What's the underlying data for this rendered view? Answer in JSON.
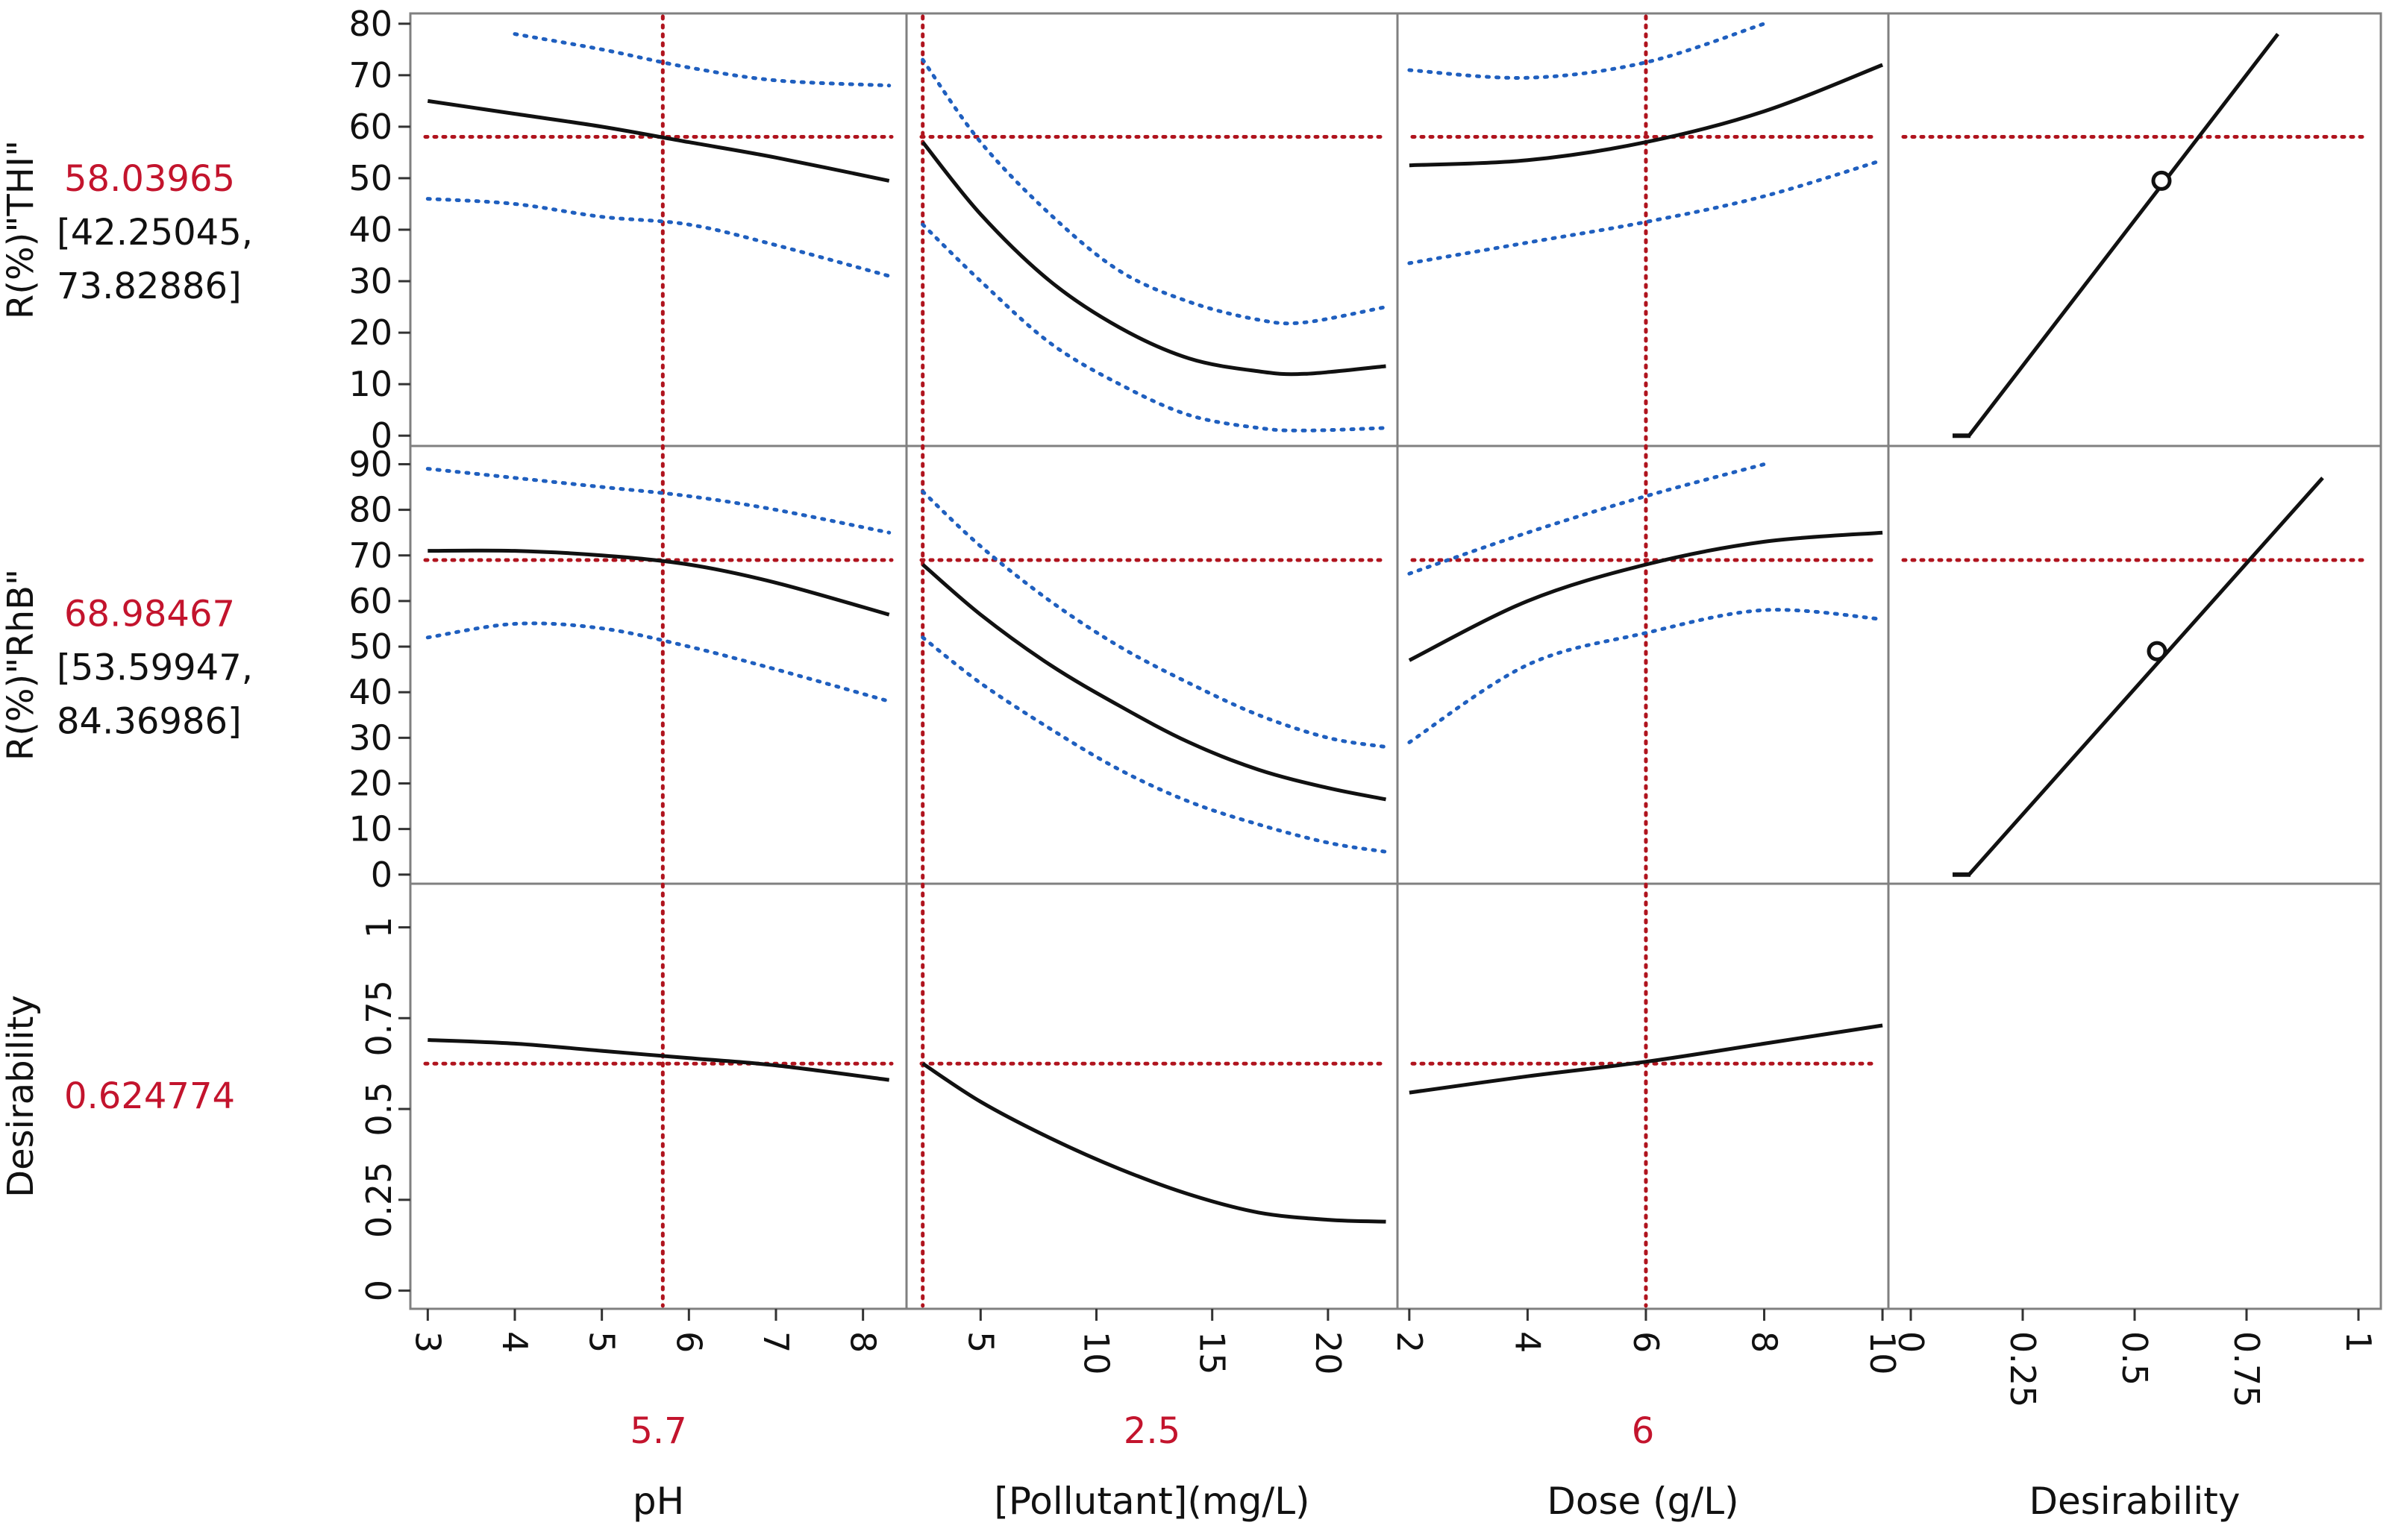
{
  "chart_data": {
    "type": "line",
    "title": "Prediction Profiler",
    "colors": {
      "prediction": "#111111",
      "confidence": "#1f5fbf",
      "reference": "#b0141e",
      "label_red": "#c3142d",
      "frame": "#808080"
    },
    "factors": [
      {
        "name": "pH",
        "current": "5.7",
        "current_value": 5.7,
        "range": [
          2.8,
          8.5
        ],
        "ticks": [
          3,
          4,
          5,
          6,
          7,
          8
        ],
        "tick_labels": [
          "3",
          "4",
          "5",
          "6",
          "7",
          "8"
        ]
      },
      {
        "name": "[Pollutant](mg/L)",
        "current": "2.5",
        "current_value": 2.5,
        "range": [
          1.8,
          23
        ],
        "ticks": [
          5,
          10,
          15,
          20
        ],
        "tick_labels": [
          "5",
          "10",
          "15",
          "20"
        ]
      },
      {
        "name": "Dose (g/L)",
        "current": "6",
        "current_value": 6,
        "range": [
          1.8,
          10.1
        ],
        "ticks": [
          2,
          4,
          6,
          8,
          10
        ],
        "tick_labels": [
          "2",
          "4",
          "6",
          "8",
          "10"
        ]
      },
      {
        "name": "Desirability",
        "current": "",
        "current_value": null,
        "range": [
          -0.05,
          1.05
        ],
        "ticks": [
          0,
          0.25,
          0.5,
          0.75,
          1
        ],
        "tick_labels": [
          "0",
          "0.25",
          "0.5",
          "0.75",
          "1"
        ]
      }
    ],
    "responses": [
      {
        "name": "R(%)\"THI\"",
        "predicted": "58.03965",
        "predicted_value": 58.03965,
        "interval": [
          "[42.25045,",
          "73.82886]"
        ],
        "ylim": [
          -2,
          82
        ],
        "ticks": [
          0,
          10,
          20,
          30,
          40,
          50,
          60,
          70,
          80
        ],
        "tick_labels": [
          "0",
          "10",
          "20",
          "30",
          "40",
          "50",
          "60",
          "70",
          "80"
        ],
        "curves": [
          {
            "x": [
              3,
              4,
              5,
              6,
              7,
              8.3
            ],
            "y": [
              65,
              62.5,
              60,
              57,
              54,
              49.5
            ],
            "lo": [
              46,
              45,
              42.5,
              41,
              37,
              31
            ],
            "hi": [
              null,
              78,
              75,
              71.5,
              69,
              68
            ]
          },
          {
            "x": [
              2.5,
              5,
              8,
              11,
              14,
              17,
              19,
              22.5
            ],
            "y": [
              57,
              43,
              30,
              21,
              15,
              12.5,
              12,
              13.5
            ],
            "lo": [
              41,
              30,
              18,
              10,
              4,
              1.5,
              1,
              1.5
            ],
            "hi": [
              73,
              57,
              43,
              32,
              26,
              22.5,
              22,
              25
            ]
          },
          {
            "x": [
              2,
              4,
              6,
              8,
              10
            ],
            "y": [
              52.5,
              53.5,
              57,
              63,
              72
            ],
            "lo": [
              33.5,
              37.5,
              41.5,
              46.5,
              53.5
            ],
            "hi": [
              71,
              69.5,
              72.5,
              80,
              null
            ]
          },
          {
            "x": [
              0.13,
              0.82
            ],
            "y": [
              0,
              78
            ],
            "point": [
              0.56,
              49.5
            ]
          }
        ]
      },
      {
        "name": "R(%)\"RhB\"",
        "predicted": "68.98467",
        "predicted_value": 68.98467,
        "interval": [
          "[53.59947,",
          "84.36986]"
        ],
        "ylim": [
          -2,
          94
        ],
        "ticks": [
          0,
          10,
          20,
          30,
          40,
          50,
          60,
          70,
          80,
          90
        ],
        "tick_labels": [
          "0",
          "10",
          "20",
          "30",
          "40",
          "50",
          "60",
          "70",
          "80",
          "90"
        ],
        "curves": [
          {
            "x": [
              3,
              4,
              5,
              6,
              7,
              8.3
            ],
            "y": [
              71,
              71,
              70,
              68,
              64,
              57
            ],
            "lo": [
              52,
              55,
              54,
              50,
              45,
              38
            ],
            "hi": [
              89,
              87,
              85,
              83,
              80,
              75
            ]
          },
          {
            "x": [
              2.5,
              5,
              8,
              11,
              14,
              17,
              20,
              22.5
            ],
            "y": [
              68,
              57,
              46,
              37,
              29,
              23,
              19,
              16.5
            ],
            "lo": [
              52,
              42,
              32,
              23,
              16,
              11,
              7,
              5
            ],
            "hi": [
              84,
              72,
              60,
              50,
              42,
              35,
              30,
              28
            ]
          },
          {
            "x": [
              2,
              4,
              6,
              8,
              10
            ],
            "y": [
              47,
              60,
              68,
              73,
              75
            ],
            "lo": [
              29,
              46,
              53,
              58,
              56
            ],
            "hi": [
              66,
              75,
              83,
              90,
              null
            ]
          },
          {
            "x": [
              0.13,
              0.92
            ],
            "y": [
              0,
              87
            ],
            "point": [
              0.55,
              49
            ]
          }
        ]
      },
      {
        "name": "Desirability",
        "predicted": "0.624774",
        "predicted_value": 0.624774,
        "interval": [],
        "ylim": [
          -0.05,
          1.12
        ],
        "ticks": [
          0,
          0.25,
          0.5,
          0.75,
          1
        ],
        "tick_labels": [
          "0",
          "0.25",
          "0.5",
          "0.75",
          "1"
        ],
        "curves": [
          {
            "x": [
              3,
              4,
              5,
              6,
              7,
              8.3
            ],
            "y": [
              0.69,
              0.68,
              0.66,
              0.64,
              0.62,
              0.58
            ]
          },
          {
            "x": [
              2.5,
              5,
              8,
              11,
              14,
              17,
              20,
              22.5
            ],
            "y": [
              0.625,
              0.52,
              0.42,
              0.335,
              0.265,
              0.215,
              0.195,
              0.19
            ]
          },
          {
            "x": [
              2,
              4,
              6,
              8,
              10
            ],
            "y": [
              0.545,
              0.59,
              0.63,
              0.68,
              0.73
            ]
          },
          null
        ]
      }
    ]
  }
}
